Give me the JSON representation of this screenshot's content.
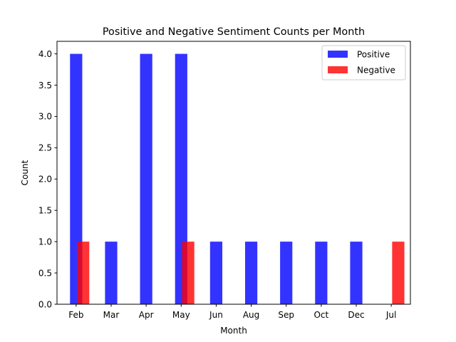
{
  "chart_data": {
    "type": "bar",
    "title": "Positive and Negative Sentiment Counts per Month",
    "xlabel": "Month",
    "ylabel": "Count",
    "categories": [
      "Feb",
      "Mar",
      "Apr",
      "May",
      "Jun",
      "Aug",
      "Sep",
      "Oct",
      "Dec",
      "Jul"
    ],
    "ylim": [
      0,
      4.2
    ],
    "yticks": [
      "0.0",
      "0.5",
      "1.0",
      "1.5",
      "2.0",
      "2.5",
      "3.0",
      "3.5",
      "4.0"
    ],
    "series": [
      {
        "name": "Positive",
        "color": "#0000ff",
        "alpha": 0.8,
        "values": [
          4,
          1,
          4,
          4,
          1,
          1,
          1,
          1,
          1,
          0
        ]
      },
      {
        "name": "Negative",
        "color": "#ff0000",
        "alpha": 0.8,
        "values": [
          1,
          0,
          0,
          1,
          0,
          0,
          0,
          0,
          0,
          1
        ]
      }
    ],
    "legend_position": "top-right",
    "grid": false
  }
}
